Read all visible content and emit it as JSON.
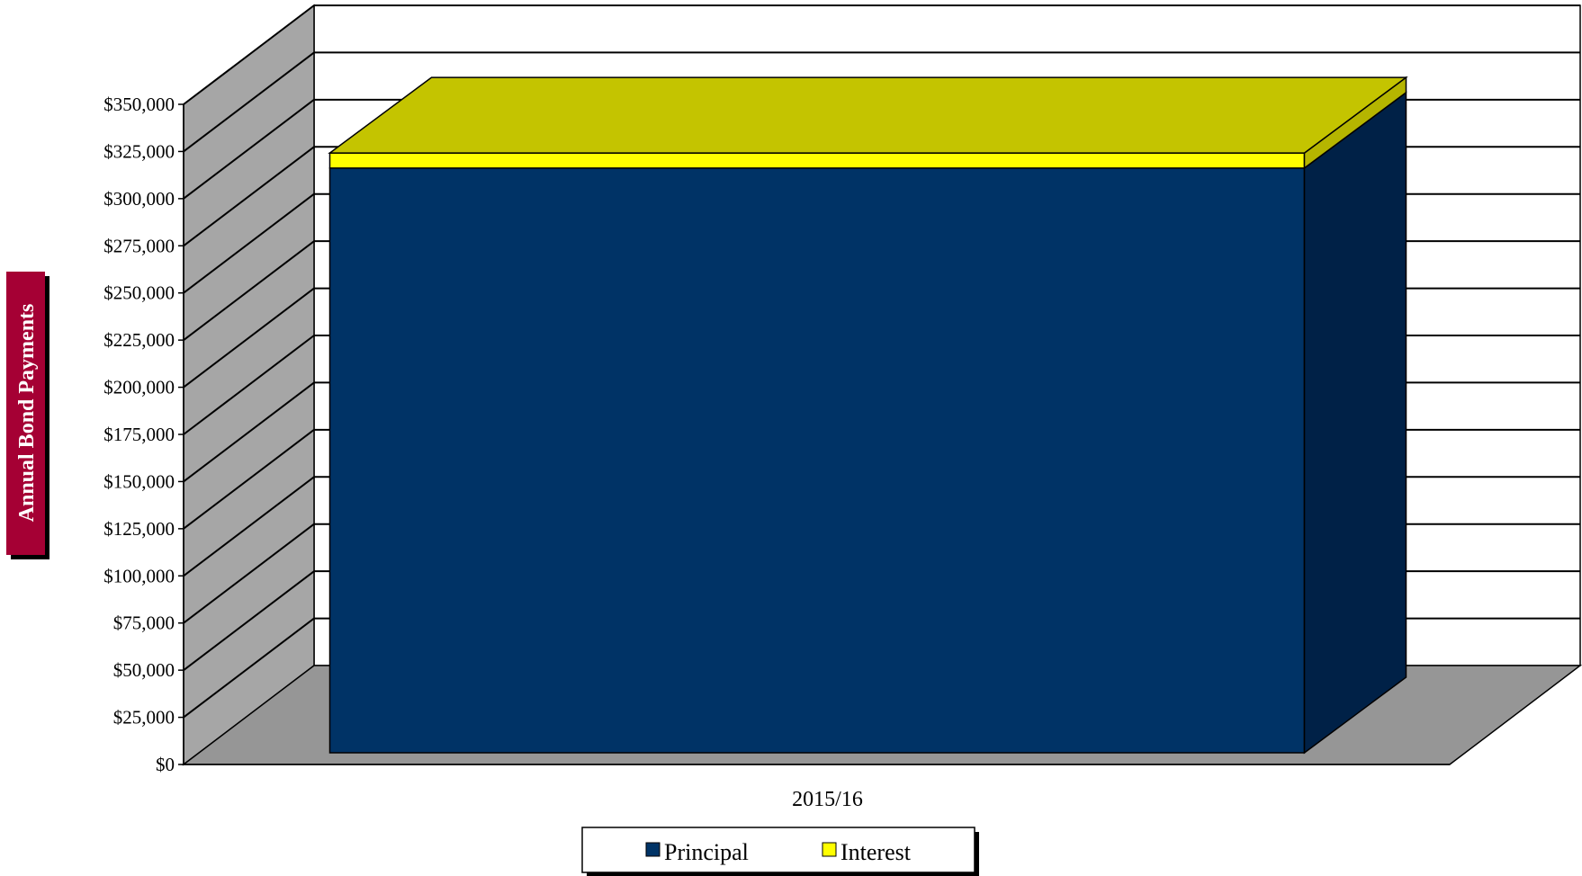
{
  "chart_data": {
    "type": "bar",
    "subtype": "stacked-3d",
    "categories": [
      "2015/16"
    ],
    "series": [
      {
        "name": "Principal",
        "values": [
          310000
        ],
        "color": "#003366"
      },
      {
        "name": "Interest",
        "values": [
          8000
        ],
        "color": "#ffff00"
      }
    ],
    "ylabel": "Annual Bond Payments",
    "ylim": [
      0,
      350000
    ],
    "ytick_labels": [
      "$0",
      "$25,000",
      "$50,000",
      "$75,000",
      "$100,000",
      "$125,000",
      "$150,000",
      "$175,000",
      "$200,000",
      "$225,000",
      "$250,000",
      "$275,000",
      "$300,000",
      "$325,000",
      "$350,000"
    ],
    "grid": true,
    "legend_position": "bottom",
    "colors": {
      "ylabel_background": "#a50034",
      "wall": "#ffffff",
      "side_wall": "#a6a6a6",
      "floor": "#969696",
      "principal_side": "#002147",
      "interest_top": "#c4c400",
      "interest_side": "#b5b500"
    }
  }
}
